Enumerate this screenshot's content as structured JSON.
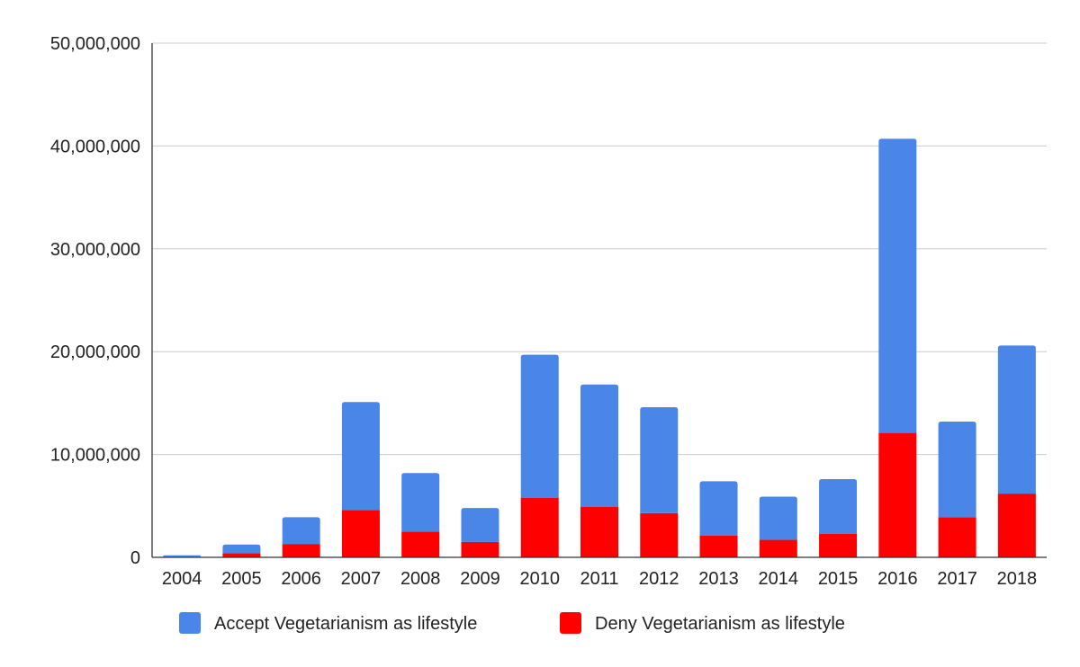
{
  "chart_data": {
    "type": "bar",
    "stacked": true,
    "categories": [
      "2004",
      "2005",
      "2006",
      "2007",
      "2008",
      "2009",
      "2010",
      "2011",
      "2012",
      "2013",
      "2014",
      "2015",
      "2016",
      "2017",
      "2018"
    ],
    "series": [
      {
        "name": "Deny Vegetarianism as lifestyle",
        "color": "#ff0000",
        "values": [
          50000,
          400000,
          1300000,
          4600000,
          2500000,
          1500000,
          5800000,
          4900000,
          4300000,
          2100000,
          1700000,
          2300000,
          12100000,
          3900000,
          6200000
        ]
      },
      {
        "name": "Accept Vegetarianism as lifestyle",
        "color": "#4a86e8",
        "values": [
          150000,
          850000,
          2600000,
          10500000,
          5700000,
          3300000,
          13900000,
          11900000,
          10300000,
          5300000,
          4200000,
          5300000,
          28600000,
          9300000,
          14400000
        ]
      }
    ],
    "y_ticks": [
      "0",
      "10,000,000",
      "20,000,000",
      "30,000,000",
      "40,000,000",
      "50,000,000"
    ],
    "ylim": [
      0,
      50000000
    ],
    "grid": true,
    "legend_position": "bottom",
    "legend": [
      {
        "label": "Accept Vegetarianism as lifestyle",
        "color": "#4a86e8"
      },
      {
        "label": "Deny Vegetarianism as lifestyle",
        "color": "#ff0000"
      }
    ],
    "title": "",
    "xlabel": "",
    "ylabel": ""
  }
}
